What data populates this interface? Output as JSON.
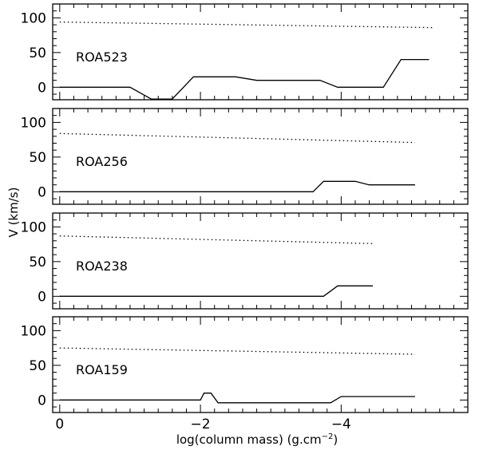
{
  "chart_data": {
    "type": "line",
    "xlabel": "log(column mass) (g.cm",
    "xlabel_sup": "−2",
    "xlabel_close": ")",
    "ylabel": "V (km/s)",
    "xlim": [
      0.1,
      -5.8
    ],
    "ylim": [
      -18,
      120
    ],
    "x_ticks": [
      0,
      -2,
      -4
    ],
    "x_tick_labels": [
      "0",
      "−2",
      "−4"
    ],
    "y_ticks": [
      0,
      50,
      100
    ],
    "y_tick_labels": [
      "0",
      "50",
      "100"
    ],
    "panels": [
      {
        "label": "ROA523",
        "dotted": [
          [
            0,
            94
          ],
          [
            -5.3,
            86
          ]
        ],
        "solid": [
          [
            0,
            0
          ],
          [
            -1.0,
            0
          ],
          [
            -1.3,
            -17
          ],
          [
            -1.6,
            -17
          ],
          [
            -1.9,
            15
          ],
          [
            -2.5,
            15
          ],
          [
            -2.8,
            10
          ],
          [
            -3.7,
            10
          ],
          [
            -3.95,
            0
          ],
          [
            -4.6,
            0
          ],
          [
            -4.85,
            40
          ],
          [
            -5.25,
            40
          ]
        ]
      },
      {
        "label": "ROA256",
        "dotted": [
          [
            0,
            84
          ],
          [
            -5.05,
            71
          ]
        ],
        "solid": [
          [
            0,
            0
          ],
          [
            -3.6,
            0
          ],
          [
            -3.75,
            15
          ],
          [
            -4.2,
            15
          ],
          [
            -4.4,
            10
          ],
          [
            -5.05,
            10
          ]
        ]
      },
      {
        "label": "ROA238",
        "dotted": [
          [
            0,
            87
          ],
          [
            -4.45,
            76
          ]
        ],
        "solid": [
          [
            0,
            0
          ],
          [
            -3.75,
            0
          ],
          [
            -3.95,
            15
          ],
          [
            -4.45,
            15
          ]
        ]
      },
      {
        "label": "ROA159",
        "dotted": [
          [
            0,
            75
          ],
          [
            -5.05,
            66
          ]
        ],
        "solid": [
          [
            0,
            0
          ],
          [
            -2.0,
            0
          ],
          [
            -2.05,
            10
          ],
          [
            -2.15,
            10
          ],
          [
            -2.25,
            -4
          ],
          [
            -3.85,
            -4
          ],
          [
            -4.0,
            5
          ],
          [
            -5.05,
            5
          ]
        ]
      }
    ]
  }
}
